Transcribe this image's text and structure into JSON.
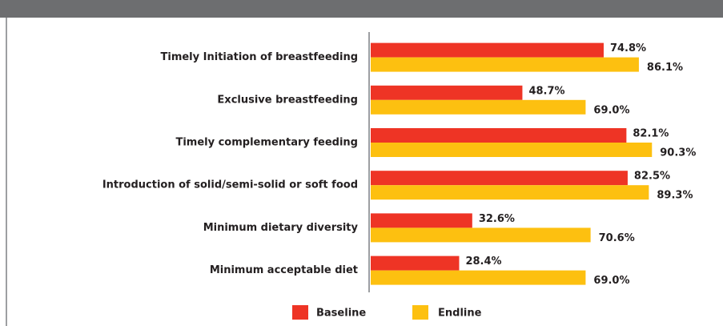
{
  "chart_data": {
    "type": "hbar",
    "categories": [
      "Timely Initiation of breastfeeding",
      "Exclusive breastfeeding",
      "Timely complementary feeding",
      "Introduction of solid/semi-solid or soft food",
      "Minimum dietary diversity",
      "Minimum acceptable diet"
    ],
    "series": [
      {
        "name": "Baseline",
        "color": "#ee3425",
        "values": [
          74.8,
          48.7,
          82.1,
          82.5,
          32.6,
          28.4
        ],
        "value_labels": [
          "74.8%",
          "48.7%",
          "82.1%",
          "82.5%",
          "32.6%",
          "28.4%"
        ]
      },
      {
        "name": "Endline",
        "color": "#fdc010",
        "values": [
          86.1,
          69.0,
          90.3,
          89.3,
          70.6,
          69.0
        ],
        "value_labels": [
          "86.1%",
          "69.0%",
          "90.3%",
          "89.3%",
          "70.6%",
          "69.0%"
        ]
      }
    ],
    "xlim": [
      0,
      100
    ],
    "legend": "bottom"
  }
}
